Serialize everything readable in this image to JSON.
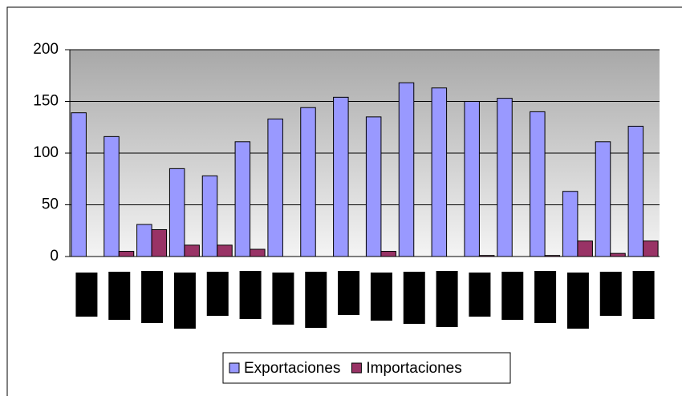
{
  "chart_data": {
    "type": "bar",
    "categories": [
      null,
      null,
      null,
      null,
      null,
      null,
      null,
      null,
      null,
      null,
      null,
      null,
      null,
      null,
      null,
      null,
      null,
      null
    ],
    "series": [
      {
        "name": "Exportaciones",
        "color": "#9999ff",
        "values": [
          139,
          116,
          31,
          85,
          78,
          111,
          133,
          144,
          154,
          135,
          168,
          163,
          150,
          153,
          140,
          63,
          111,
          126
        ]
      },
      {
        "name": "Importaciones",
        "color": "#993366",
        "values": [
          0,
          5,
          26,
          11,
          11,
          7,
          0,
          0,
          0,
          5,
          0,
          0,
          1,
          0,
          1,
          15,
          3,
          15
        ]
      }
    ],
    "ylim": [
      0,
      200
    ],
    "yticks": [
      0,
      50,
      100,
      150,
      200
    ],
    "grid": true,
    "legend": "bottom"
  }
}
